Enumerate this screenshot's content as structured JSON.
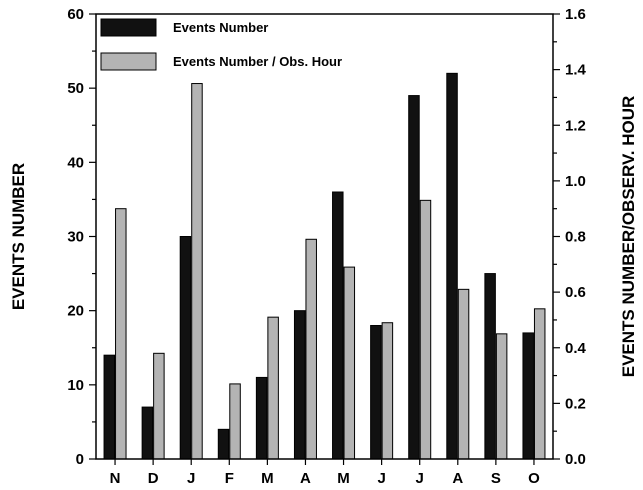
{
  "chart_data": {
    "type": "bar",
    "categories": [
      "N",
      "D",
      "J",
      "F",
      "M",
      "A",
      "M",
      "J",
      "J",
      "A",
      "S",
      "O"
    ],
    "series": [
      {
        "name": "Events Number",
        "axis": "left",
        "color": "#111111",
        "values": [
          14,
          7,
          30,
          4,
          11,
          20,
          36,
          18,
          49,
          52,
          25,
          17
        ]
      },
      {
        "name": "Events Number / Obs. Hour",
        "axis": "right",
        "color": "#b4b4b4",
        "values": [
          0.9,
          0.38,
          1.35,
          0.27,
          0.51,
          0.79,
          0.69,
          0.49,
          0.93,
          0.61,
          0.45,
          0.54
        ]
      }
    ],
    "ylabel": "EVENTS NUMBER",
    "y2label": "EVENTS NUMBER/OBSERV. HOUR",
    "xlabel": "",
    "ylim": [
      0,
      60
    ],
    "y2lim": [
      0,
      1.6
    ],
    "yticks": [
      "0",
      "10",
      "20",
      "30",
      "40",
      "50",
      "60"
    ],
    "y2ticks": [
      "0.0",
      "0.2",
      "0.4",
      "0.6",
      "0.8",
      "1.0",
      "1.2",
      "1.4",
      "1.6"
    ],
    "grid": false,
    "legend_position": "top-left"
  }
}
